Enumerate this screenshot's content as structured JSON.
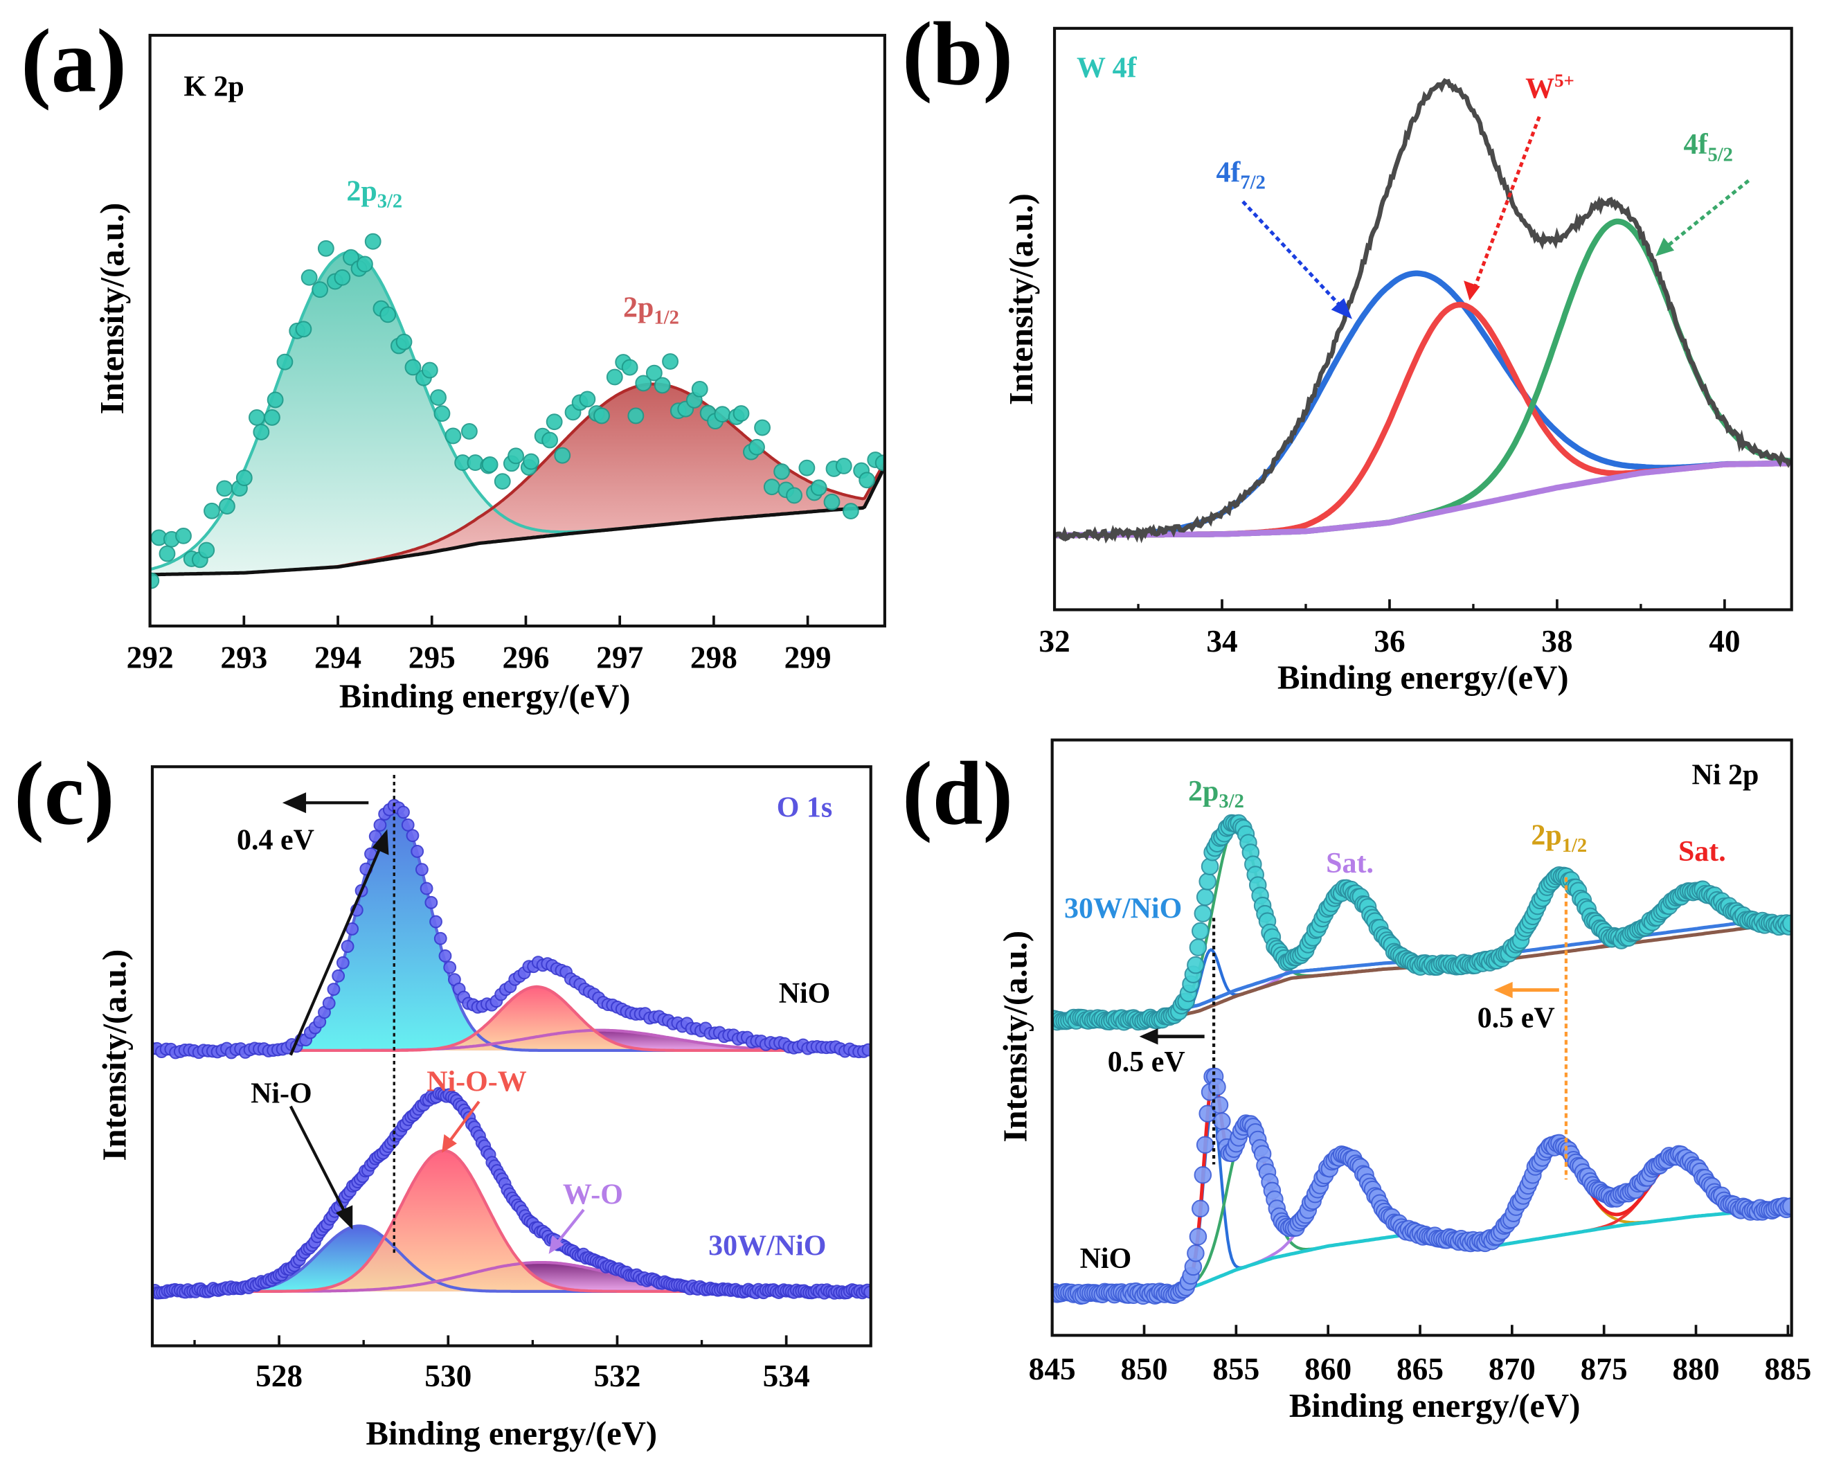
{
  "chart_data": [
    {
      "panel": "a",
      "type": "scatter",
      "letter": "(a)",
      "title": "K 2p",
      "xlabel": "Binding energy/(eV)",
      "ylabel": "Intensity/(a.u.)",
      "xlim": [
        292,
        299.82
      ],
      "ylim": [
        0,
        1
      ],
      "xticks": [
        292,
        293,
        294,
        295,
        296,
        297,
        298,
        299
      ],
      "minor_xticks": [],
      "annotations": [
        {
          "main": "2p",
          "sub": "3/2",
          "color": "#2ec4b0"
        },
        {
          "main": "2p",
          "sub": "1/2",
          "color": "#d05a5a"
        }
      ],
      "traces": [
        {
          "name": "K 2p",
          "background": [
            [
              292,
              0.087
            ],
            [
              293,
              0.09
            ],
            [
              294,
              0.1
            ],
            [
              295,
              0.125
            ],
            [
              295.5,
              0.14
            ],
            [
              296.5,
              0.157
            ],
            [
              298,
              0.18
            ],
            [
              299.3,
              0.197
            ],
            [
              299.6,
              0.2
            ],
            [
              299.82,
              0.27
            ]
          ],
          "background_lines": [
            {
              "color": "#111111",
              "offset": 0
            }
          ],
          "components": [
            {
              "name": "2p3/2",
              "center": 294.1,
              "fwhm": 1.73,
              "height": 0.53,
              "color": "#3cc3b0",
              "fill": [
                "#5cc8b4",
                "#e3f5f0"
              ]
            },
            {
              "name": "2p1/2",
              "center": 297.3,
              "fwhm": 2.3,
              "height": 0.24,
              "color": "#b22a2a",
              "fill": [
                "#c25656",
                "#f6c4c4"
              ]
            }
          ],
          "data": {
            "style": "dots",
            "step": 0.085,
            "noise": 0.05,
            "jitter": true,
            "r": 6.5,
            "fill": "#33c7b3",
            "stroke": "#1e9a8a",
            "extra": []
          }
        }
      ]
    },
    {
      "panel": "b",
      "type": "line",
      "letter": "(b)",
      "title": "W 4f",
      "xlabel": "Binding energy/(eV)",
      "ylabel": "Intensity/(a.u.)",
      "xlim": [
        32,
        40.8
      ],
      "ylim": [
        0,
        1
      ],
      "xticks": [
        32,
        34,
        36,
        38,
        40
      ],
      "minor_xticks": [
        33,
        35,
        37,
        39
      ],
      "annotations": [
        {
          "main": "W",
          "sup": "5+",
          "color": "#ee2222"
        },
        {
          "main": "4f",
          "sub": "5/2",
          "color": "#3aa86b"
        },
        {
          "main": "4f",
          "sub": "7/2",
          "color": "#2a6fdb"
        }
      ],
      "traces": [
        {
          "name": "W 4f",
          "background": [
            [
              32,
              0.128
            ],
            [
              34,
              0.13
            ],
            [
              35,
              0.135
            ],
            [
              36,
              0.15
            ],
            [
              37,
              0.18
            ],
            [
              38,
              0.21
            ],
            [
              39,
              0.235
            ],
            [
              40,
              0.25
            ],
            [
              40.8,
              0.252
            ]
          ],
          "background_lines": [
            {
              "color": "#b07ee0",
              "offset": 0,
              "width": 5
            }
          ],
          "components": [
            {
              "name": "4f7/2",
              "center": 36.25,
              "fwhm": 2.4,
              "height": 0.42,
              "color": "#2a6fdb",
              "width": 5
            },
            {
              "name": "W5+",
              "center": 36.8,
              "fwhm": 1.6,
              "height": 0.35,
              "color": "#ef4444",
              "width": 5
            },
            {
              "name": "4f5/2",
              "center": 38.7,
              "fwhm": 1.6,
              "height": 0.44,
              "color": "#3aa86b",
              "width": 5
            }
          ],
          "data": {
            "style": "line",
            "step": 0.02,
            "noise": 0.006,
            "color": "#4a4a4a",
            "width": 4,
            "extra": []
          }
        }
      ]
    },
    {
      "panel": "c",
      "type": "scatter",
      "letter": "(c)",
      "title": "O 1s",
      "xlabel": "Binding energy/(eV)",
      "ylabel": "Intensity/(a.u.)",
      "xlim": [
        526.5,
        535
      ],
      "ylim": [
        0,
        1
      ],
      "xticks": [
        528,
        530,
        532,
        534
      ],
      "minor_xticks": [
        527,
        529,
        531,
        533
      ],
      "annotations": [
        {
          "text": "0.4 eV",
          "color": "#111111"
        },
        {
          "text": "Ni-O",
          "color": "#111111"
        },
        {
          "text": "Ni-O-W",
          "color": "#f2574f"
        },
        {
          "text": "W-O",
          "color": "#b57ee8"
        },
        {
          "text": "NiO",
          "color": "#111111"
        },
        {
          "text": "30W/NiO",
          "color": "#5a55e0"
        }
      ],
      "traces": [
        {
          "name": "NiO",
          "background": [
            [
              526.5,
              0.51
            ],
            [
              535,
              0.51
            ]
          ],
          "background_lines": [],
          "components": [
            {
              "name": "Ni-O",
              "center": 529.36,
              "fwhm": 1.0,
              "height": 0.42,
              "color": "#5a66e0",
              "fill": [
                "#4a6ee0",
                "#5ff0f0"
              ]
            },
            {
              "name": "W-O",
              "center": 531.8,
              "fwhm": 2.0,
              "height": 0.035,
              "color": "#c060c0",
              "fill": [
                "#8a2a8a",
                "#e9a0e9"
              ]
            },
            {
              "name": "Ni-O-W",
              "center": 531.05,
              "fwhm": 1.05,
              "height": 0.11,
              "color": "#f06080",
              "fill": [
                "#ff5a7a",
                "#ffd3a0"
              ]
            }
          ],
          "data": {
            "style": "dots",
            "step": 0.055,
            "noise": 0.004,
            "r": 5,
            "fill": "#6a6af0",
            "stroke": "#3a3ad0",
            "extra": [
              {
                "center": 532.3,
                "fwhm": 2.5,
                "height": 0.03
              }
            ]
          }
        },
        {
          "name": "30W/NiO",
          "background": [
            [
              526.5,
              0.094
            ],
            [
              535,
              0.094
            ]
          ],
          "background_lines": [],
          "components": [
            {
              "name": "Ni-O",
              "center": 528.95,
              "fwhm": 1.1,
              "height": 0.113,
              "color": "#5a66e0",
              "fill": [
                "#4a5ee0",
                "#5ff0f0"
              ]
            },
            {
              "name": "W-O",
              "center": 531.1,
              "fwhm": 2.0,
              "height": 0.05,
              "color": "#c060c0",
              "fill": [
                "#7a227a",
                "#e9a0e9"
              ]
            },
            {
              "name": "Ni-O-W",
              "center": 529.95,
              "fwhm": 1.2,
              "height": 0.243,
              "color": "#f06080",
              "fill": [
                "#ff5a7a",
                "#ffd3a0"
              ]
            }
          ],
          "data": {
            "style": "dots",
            "step": 0.03,
            "noise": 0.003,
            "r": 5,
            "fill": "#6a6af0",
            "stroke": "#3a3ad0",
            "extra": [
              {
                "center": 529.9,
                "fwhm": 2.5,
                "height": 0.065
              }
            ]
          }
        }
      ]
    },
    {
      "panel": "d",
      "type": "scatter",
      "letter": "(d)",
      "title": "Ni 2p",
      "xlabel": "Binding energy/(eV)",
      "ylabel": "Intensity/(a.u.)",
      "xlim": [
        845,
        885.2
      ],
      "ylim": [
        0,
        1
      ],
      "xticks": [
        845,
        850,
        855,
        860,
        865,
        870,
        875,
        880,
        885
      ],
      "minor_xticks": [],
      "annotations": [
        {
          "main": "2p",
          "sub": "3/2",
          "color": "#3aa86b"
        },
        {
          "text": "Sat.",
          "color": "#b57ee8"
        },
        {
          "main": "2p",
          "sub": "1/2",
          "color": "#d4a017"
        },
        {
          "text": "Sat.",
          "color": "#ee2222"
        },
        {
          "text": "30W/NiO",
          "color": "#2a8fe0"
        },
        {
          "text": "NiO",
          "color": "#111111"
        },
        {
          "text": "0.5 eV",
          "color": "#111111"
        },
        {
          "text": "0.5 eV",
          "color": "#111111"
        }
      ],
      "traces": [
        {
          "name": "30W/NiO",
          "background": [
            [
              845,
              0.53
            ],
            [
              851,
              0.53
            ],
            [
              853,
              0.545
            ],
            [
              855,
              0.57
            ],
            [
              858,
              0.6
            ],
            [
              863,
              0.615
            ],
            [
              868,
              0.625
            ],
            [
              873,
              0.645
            ],
            [
              878,
              0.665
            ],
            [
              883,
              0.685
            ],
            [
              885.2,
              0.69
            ]
          ],
          "background_lines": [
            {
              "color": "#8a5a4a",
              "offset": 0,
              "width": 3
            },
            {
              "color": "#3a7ae0",
              "offset": 0.01,
              "width": 3
            }
          ],
          "components": [
            {
              "name": "blue",
              "center": 853.6,
              "fwhm": 1.2,
              "height": 0.095,
              "color": "#2a6fdb"
            },
            {
              "name": "2p3/2",
              "center": 855.0,
              "fwhm": 2.8,
              "height": 0.29,
              "color": "#3aa86b"
            },
            {
              "name": "Sat.",
              "center": 861.0,
              "fwhm": 3.5,
              "height": 0.14,
              "color": "#b57ee8"
            },
            {
              "name": "2p1/2",
              "center": 872.6,
              "fwhm": 3.0,
              "height": 0.13,
              "color": "#d4a017"
            },
            {
              "name": "Sat.",
              "center": 879.8,
              "fwhm": 4.0,
              "height": 0.075,
              "color": "#ee3333"
            }
          ],
          "data": {
            "style": "dots",
            "step": 0.13,
            "noise": 0.004,
            "r": 7,
            "fill": "#45d0d4",
            "stroke": "#2a8fa0",
            "extra": []
          }
        },
        {
          "name": "NiO",
          "background": [
            [
              845,
              0.07
            ],
            [
              851.5,
              0.07
            ],
            [
              853,
              0.085
            ],
            [
              855,
              0.11
            ],
            [
              857,
              0.13
            ],
            [
              860,
              0.15
            ],
            [
              864,
              0.168
            ],
            [
              866,
              0.165
            ],
            [
              869,
              0.15
            ],
            [
              872,
              0.165
            ],
            [
              876,
              0.185
            ],
            [
              880,
              0.2
            ],
            [
              885.2,
              0.215
            ]
          ],
          "background_lines": [
            {
              "color": "#22c8d0",
              "offset": 0,
              "width": 3
            }
          ],
          "envelope": {
            "color": "#ee2222",
            "width": 3
          },
          "components": [
            {
              "name": "blue",
              "center": 853.7,
              "fwhm": 1.1,
              "height": 0.29,
              "color": "#2a6fdb"
            },
            {
              "name": "2p3/2",
              "center": 855.6,
              "fwhm": 2.5,
              "height": 0.24,
              "color": "#3aa86b"
            },
            {
              "name": "Sat.",
              "center": 860.8,
              "fwhm": 3.5,
              "height": 0.15,
              "color": "#b57ee8"
            },
            {
              "name": "2p1/2",
              "center": 872.3,
              "fwhm": 3.5,
              "height": 0.15,
              "color": "#d4a017"
            },
            {
              "name": "Sat.",
              "center": 879.0,
              "fwhm": 3.5,
              "height": 0.1,
              "color": "#ee3333"
            }
          ],
          "data": {
            "style": "dots",
            "step": 0.13,
            "noise": 0.004,
            "r": 7,
            "fill": "#7f9cf5",
            "stroke": "#3e5fd8",
            "extra": [
              {
                "center": 876,
                "fwhm": 4,
                "height": 0.03
              }
            ]
          }
        }
      ]
    }
  ]
}
